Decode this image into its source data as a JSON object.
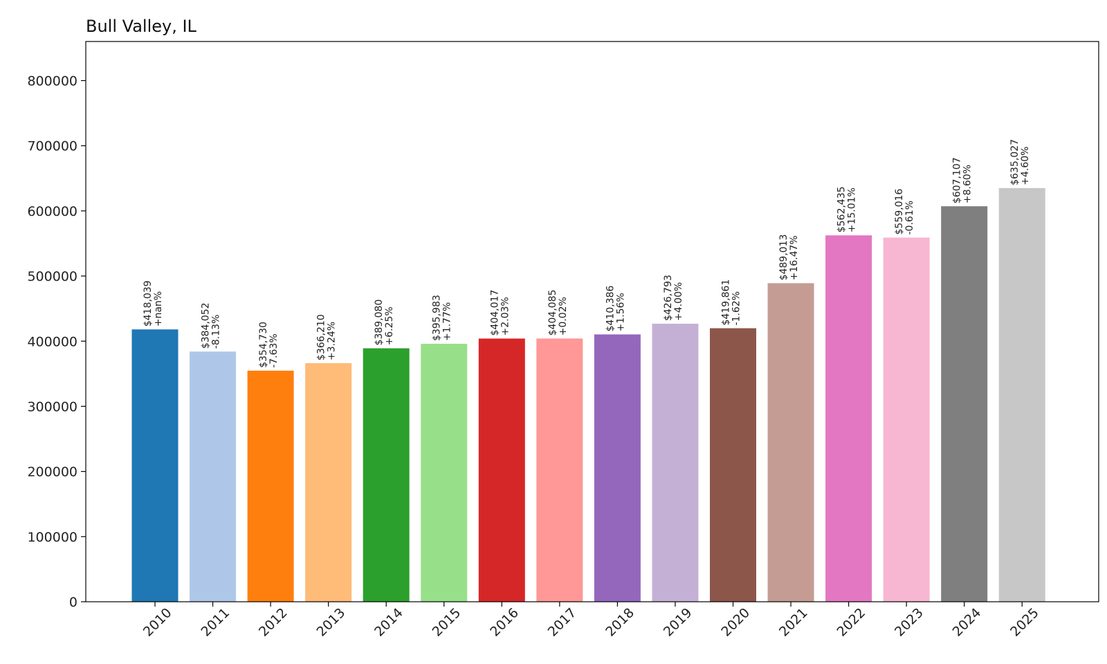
{
  "chart_data": {
    "type": "bar",
    "title": "Bull Valley, IL",
    "xlabel": "",
    "ylabel": "",
    "ylim": [
      0,
      860000
    ],
    "yticks": [
      0,
      100000,
      200000,
      300000,
      400000,
      500000,
      600000,
      700000,
      800000
    ],
    "ytick_labels": [
      "0",
      "100000",
      "200000",
      "300000",
      "400000",
      "500000",
      "600000",
      "700000",
      "800000"
    ],
    "grid": false,
    "categories": [
      "2010",
      "2011",
      "2012",
      "2013",
      "2014",
      "2015",
      "2016",
      "2017",
      "2018",
      "2019",
      "2020",
      "2021",
      "2022",
      "2023",
      "2024",
      "2025"
    ],
    "values": [
      418039,
      384052,
      354730,
      366210,
      389080,
      395983,
      404017,
      404085,
      410386,
      426793,
      419861,
      489013,
      562435,
      559016,
      607107,
      635027
    ],
    "value_labels": [
      "$418,039",
      "$384,052",
      "$354,730",
      "$366,210",
      "$389,080",
      "$395,983",
      "$404,017",
      "$404,085",
      "$410,386",
      "$426,793",
      "$419,861",
      "$489,013",
      "$562,435",
      "$559,016",
      "$607,107",
      "$635,027"
    ],
    "change_labels": [
      "+nan%",
      "-8.13%",
      "-7.63%",
      "+3.24%",
      "+6.25%",
      "+1.77%",
      "+2.03%",
      "+0.02%",
      "+1.56%",
      "+4.00%",
      "-1.62%",
      "+16.47%",
      "+15.01%",
      "-0.61%",
      "+8.60%",
      "+4.60%"
    ],
    "colors": [
      "#1f77b4",
      "#aec7e8",
      "#ff7f0e",
      "#ffbb78",
      "#2ca02c",
      "#98df8a",
      "#d62728",
      "#ff9896",
      "#9467bd",
      "#c5b0d5",
      "#8c564b",
      "#c49c94",
      "#e377c2",
      "#f7b6d2",
      "#7f7f7f",
      "#c7c7c7"
    ]
  }
}
